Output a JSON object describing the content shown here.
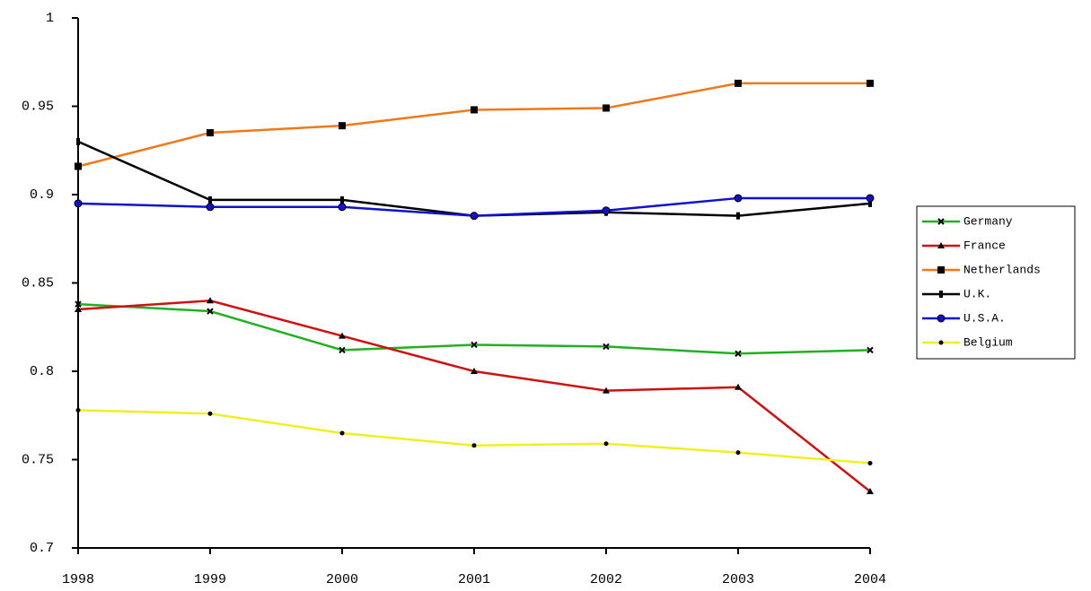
{
  "chart_data": {
    "type": "line",
    "x": [
      1998,
      1999,
      2000,
      2001,
      2002,
      2003,
      2004
    ],
    "xlim": [
      1998,
      2004
    ],
    "xticks": [
      1998,
      1999,
      2000,
      2001,
      2002,
      2003,
      2004
    ],
    "ylim": [
      0.7,
      1
    ],
    "yticks": [
      0.7,
      0.75,
      0.8,
      0.85,
      0.9,
      0.95,
      1
    ],
    "grid": false,
    "legend": "right",
    "series": [
      {
        "name": "Germany",
        "color": "#22b022",
        "marker": "x",
        "values": [
          0.838,
          0.834,
          0.812,
          0.815,
          0.814,
          0.81,
          0.812
        ]
      },
      {
        "name": "France",
        "color": "#d01010",
        "marker": "triangle",
        "values": [
          0.835,
          0.84,
          0.82,
          0.8,
          0.789,
          0.791,
          0.732
        ]
      },
      {
        "name": "Netherlands",
        "color": "#f07818",
        "marker": "square",
        "values": [
          0.916,
          0.935,
          0.939,
          0.948,
          0.949,
          0.963,
          0.963
        ]
      },
      {
        "name": "U.K.",
        "color": "#000000",
        "marker": "bar",
        "values": [
          0.93,
          0.897,
          0.897,
          0.888,
          0.89,
          0.888,
          0.895
        ]
      },
      {
        "name": "U.S.A.",
        "color": "#1010d0",
        "marker": "circle",
        "values": [
          0.895,
          0.893,
          0.893,
          0.888,
          0.891,
          0.898,
          0.898
        ]
      },
      {
        "name": "Belgium",
        "color": "#f0f020",
        "marker": "dot",
        "values": [
          0.778,
          0.776,
          0.765,
          0.758,
          0.759,
          0.754,
          0.748
        ]
      }
    ]
  }
}
